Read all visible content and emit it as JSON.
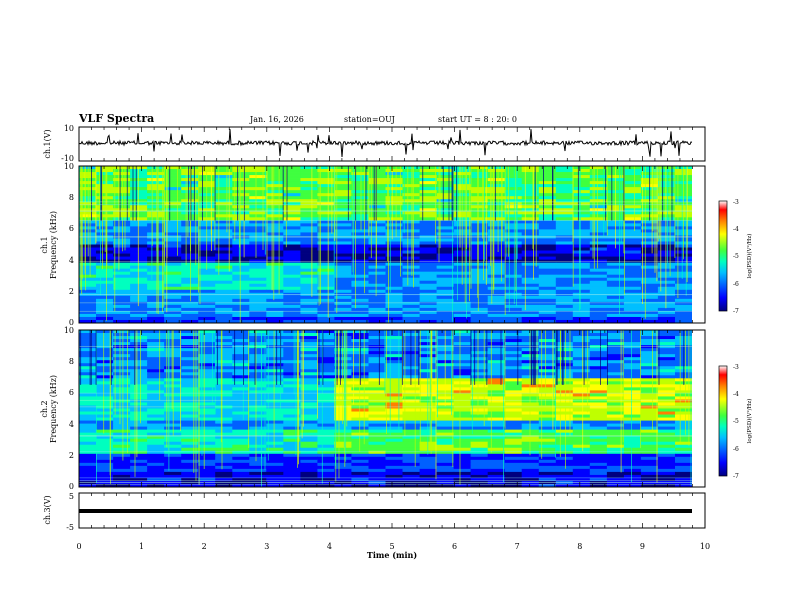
{
  "header": {
    "title": "VLF Spectra",
    "date": "Jan. 16, 2026",
    "station": "station=OUJ",
    "start_ut": "start UT =  8 : 20: 0"
  },
  "panels": {
    "ch1_waveform": {
      "ylabel": "ch.1(V)",
      "ticks": [
        "10",
        "-10"
      ]
    },
    "ch1_spectrogram": {
      "ylabel_line1": "ch.1",
      "ylabel_line2": "Frequency (kHz)",
      "yticks": [
        "0",
        "2",
        "4",
        "6",
        "8",
        "10"
      ]
    },
    "ch2_spectrogram": {
      "ylabel_line1": "ch.2",
      "ylabel_line2": "Frequency (kHz)",
      "yticks": [
        "0",
        "2",
        "4",
        "6",
        "8",
        "10"
      ]
    },
    "ch3_waveform": {
      "ylabel": "ch.3(V)",
      "ticks": [
        "5",
        "-5"
      ]
    }
  },
  "colorbar": {
    "ticks": [
      "-3",
      "-4",
      "-5",
      "-6",
      "-7"
    ],
    "label": "log(PSD)(V²/Hz)",
    "colors": [
      "#00007f",
      "#0000ff",
      "#00bfff",
      "#00ffbf",
      "#3fff3f",
      "#ffff00",
      "#ff7f00",
      "#ff0000",
      "#ffffff"
    ]
  },
  "x_axis": {
    "ticks": [
      "0",
      "1",
      "2",
      "3",
      "4",
      "5",
      "6",
      "7",
      "8",
      "9",
      "10"
    ],
    "label": "Time (min)"
  },
  "chart_data": [
    {
      "type": "line",
      "title": "ch.1(V)",
      "ylabel": "ch.1(V)",
      "ylim": [
        -10,
        10
      ],
      "xlim": [
        0,
        10
      ],
      "description_value": "noisy waveform centered near 0 V with spikes"
    },
    {
      "type": "heatmap",
      "ylabel": "Frequency (kHz)",
      "ylim": [
        0,
        10
      ],
      "xlim": [
        0,
        9.8
      ],
      "colorscale_range": [
        -7,
        -3
      ]
    },
    {
      "type": "heatmap",
      "ylabel": "Frequency (kHz)",
      "ylim": [
        0,
        10
      ],
      "xlim": [
        0,
        9.8
      ],
      "colorscale_range": [
        -7,
        -3
      ]
    },
    {
      "type": "line",
      "ylabel": "ch.3(V)",
      "ylim": [
        -5,
        5
      ],
      "xlim": [
        0,
        10
      ]
    }
  ]
}
